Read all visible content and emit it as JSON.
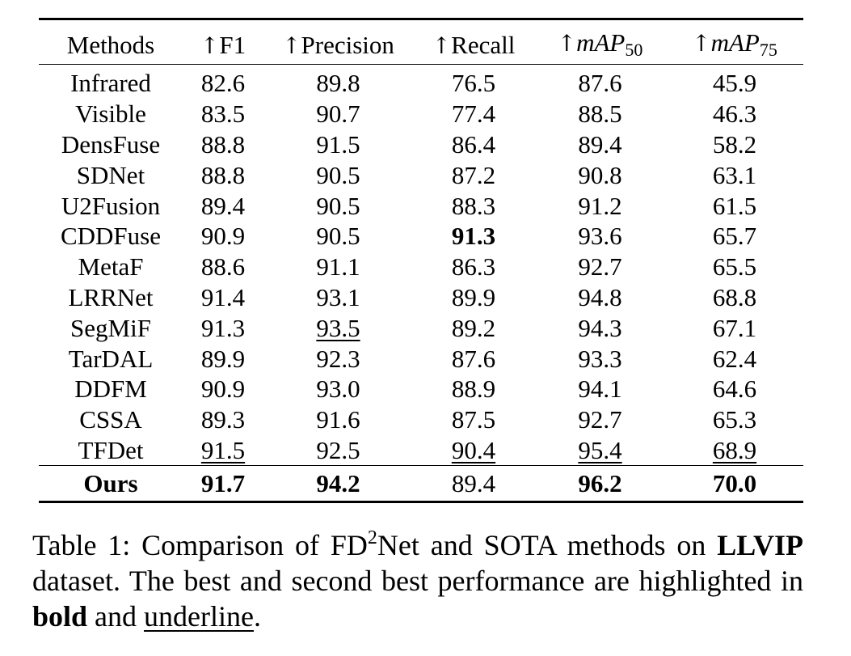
{
  "table": {
    "headers": [
      {
        "arrow": "↑",
        "label": ""
      },
      {
        "arrow": "↑",
        "label": "F1"
      },
      {
        "arrow": "↑",
        "label": "Precision"
      },
      {
        "arrow": "↑",
        "label": "Recall"
      },
      {
        "arrow": "↑",
        "label": "mAP",
        "sub": "50"
      },
      {
        "arrow": "↑",
        "label": "mAP",
        "sub": "75"
      }
    ],
    "first_header": "Methods",
    "rows": [
      {
        "method": "Infrared",
        "values": [
          "82.6",
          "89.8",
          "76.5",
          "87.6",
          "45.9"
        ],
        "bold": [],
        "underline": []
      },
      {
        "method": "Visible",
        "values": [
          "83.5",
          "90.7",
          "77.4",
          "88.5",
          "46.3"
        ],
        "bold": [],
        "underline": []
      },
      {
        "method": "DensFuse",
        "values": [
          "88.8",
          "91.5",
          "86.4",
          "89.4",
          "58.2"
        ],
        "bold": [],
        "underline": []
      },
      {
        "method": "SDNet",
        "values": [
          "88.8",
          "90.5",
          "87.2",
          "90.8",
          "63.1"
        ],
        "bold": [],
        "underline": []
      },
      {
        "method": "U2Fusion",
        "values": [
          "89.4",
          "90.5",
          "88.3",
          "91.2",
          "61.5"
        ],
        "bold": [],
        "underline": []
      },
      {
        "method": "CDDFuse",
        "values": [
          "90.9",
          "90.5",
          "91.3",
          "93.6",
          "65.7"
        ],
        "bold": [
          2
        ],
        "underline": []
      },
      {
        "method": "MetaF",
        "values": [
          "88.6",
          "91.1",
          "86.3",
          "92.7",
          "65.5"
        ],
        "bold": [],
        "underline": []
      },
      {
        "method": "LRRNet",
        "values": [
          "91.4",
          "93.1",
          "89.9",
          "94.8",
          "68.8"
        ],
        "bold": [],
        "underline": []
      },
      {
        "method": "SegMiF",
        "values": [
          "91.3",
          "93.5",
          "89.2",
          "94.3",
          "67.1"
        ],
        "bold": [],
        "underline": [
          1
        ]
      },
      {
        "method": "TarDAL",
        "values": [
          "89.9",
          "92.3",
          "87.6",
          "93.3",
          "62.4"
        ],
        "bold": [],
        "underline": []
      },
      {
        "method": "DDFM",
        "values": [
          "90.9",
          "93.0",
          "88.9",
          "94.1",
          "64.6"
        ],
        "bold": [],
        "underline": []
      },
      {
        "method": "CSSA",
        "values": [
          "89.3",
          "91.6",
          "87.5",
          "92.7",
          "65.3"
        ],
        "bold": [],
        "underline": []
      },
      {
        "method": "TFDet",
        "values": [
          "91.5",
          "92.5",
          "90.4",
          "95.4",
          "68.9"
        ],
        "bold": [],
        "underline": [
          0,
          2,
          3,
          4
        ]
      },
      {
        "method": "Ours",
        "method_bold": true,
        "values": [
          "91.7",
          "94.2",
          "89.4",
          "96.2",
          "70.0"
        ],
        "bold": [
          0,
          1,
          3,
          4
        ],
        "underline": []
      }
    ]
  },
  "caption": {
    "prefix": "Table 1: Comparison of FD",
    "sup": "2",
    "mid": "Net and SOTA methods on ",
    "dataset": "LLVIP",
    "after_dataset": " dataset. The best and second best performance are highlighted in ",
    "bold_word": "bold",
    "and_word": " and ",
    "underline_word": "underline",
    "end": "."
  }
}
